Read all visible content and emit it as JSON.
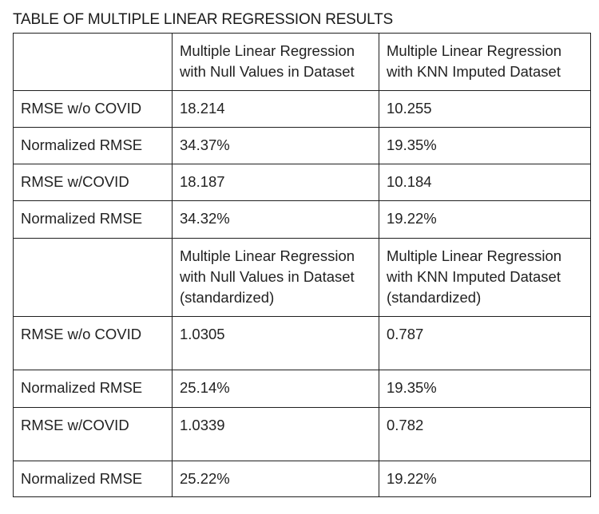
{
  "title": "TABLE OF MULTIPLE LINEAR REGRESSION RESULTS",
  "header1": {
    "col2": [
      "Multiple Linear Regression",
      "with Null Values in Dataset"
    ],
    "col3": [
      "Multiple Linear Regression",
      "with KNN Imputed Dataset"
    ]
  },
  "section1": [
    {
      "label": "RMSE w/o COVID",
      "null_values": "18.214",
      "knn_imputed": "10.255"
    },
    {
      "label": "Normalized RMSE",
      "null_values": "34.37%",
      "knn_imputed": "19.35%"
    },
    {
      "label": "RMSE w/COVID",
      "null_values": "18.187",
      "knn_imputed": "10.184"
    },
    {
      "label": "Normalized RMSE",
      "null_values": "34.32%",
      "knn_imputed": "19.22%"
    }
  ],
  "header2": {
    "col2": [
      "Multiple Linear Regression",
      "with Null Values in Dataset",
      "(standardized)"
    ],
    "col3": [
      "Multiple Linear Regression",
      "with KNN Imputed Dataset",
      "(standardized)"
    ]
  },
  "section2": [
    {
      "label": "RMSE w/o COVID",
      "null_values": "1.0305",
      "knn_imputed": "0.787"
    },
    {
      "label": "Normalized RMSE",
      "null_values": "25.14%",
      "knn_imputed": "19.35%"
    },
    {
      "label": "RMSE w/COVID",
      "null_values": "1.0339",
      "knn_imputed": "0.782"
    },
    {
      "label": "Normalized RMSE",
      "null_values": "25.22%",
      "knn_imputed": "19.22%"
    }
  ]
}
